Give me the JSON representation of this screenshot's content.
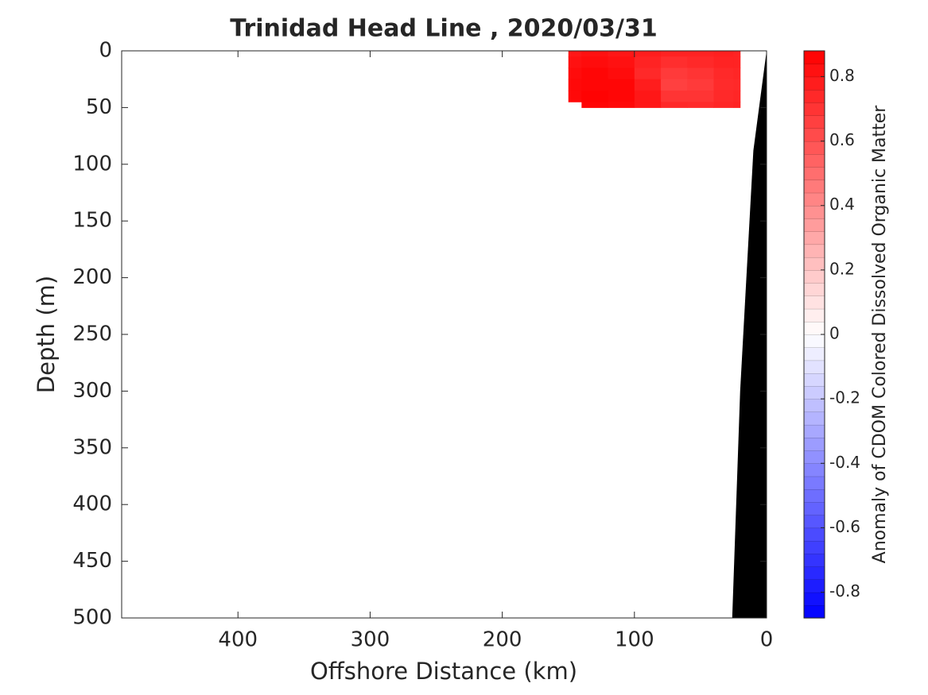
{
  "chart_data": {
    "type": "section",
    "title": "Trinidad Head Line , 2020/03/31",
    "xlabel": "Offshore Distance (km)",
    "ylabel": "Depth (m)",
    "colorbar_label": "Anomaly of CDOM Colored Dissolved Organic Matter",
    "xlim": [
      488,
      0
    ],
    "xticks": [
      400,
      300,
      200,
      100,
      0
    ],
    "ylim": [
      0,
      500
    ],
    "yticks": [
      0,
      50,
      100,
      150,
      200,
      250,
      300,
      350,
      400,
      450,
      500
    ],
    "clim": [
      -0.88,
      0.88
    ],
    "cticks": [
      -0.8,
      -0.6,
      -0.4,
      -0.2,
      0,
      0.2,
      0.4,
      0.6,
      0.8
    ],
    "x": [
      150,
      130,
      110,
      90,
      70,
      50,
      30,
      20
    ],
    "depth": [
      0,
      10,
      20,
      30,
      40,
      50
    ],
    "values": [
      [
        0.8,
        0.82,
        0.8,
        0.78,
        0.76,
        0.76,
        0.77,
        0.76
      ],
      [
        0.82,
        0.84,
        0.82,
        0.76,
        0.72,
        0.74,
        0.76,
        0.76
      ],
      [
        0.84,
        0.86,
        0.84,
        0.74,
        0.68,
        0.7,
        0.74,
        0.75
      ],
      [
        0.85,
        0.86,
        0.86,
        0.78,
        0.66,
        0.68,
        0.73,
        0.74
      ],
      [
        0.85,
        0.87,
        0.86,
        0.8,
        0.7,
        0.7,
        0.74,
        0.75
      ],
      [
        null,
        0.86,
        0.85,
        0.8,
        0.74,
        0.73,
        0.75,
        0.76
      ]
    ],
    "bathymetry": {
      "x": [
        0,
        10,
        20,
        26,
        0
      ],
      "depth": [
        0,
        88,
        300,
        500,
        500
      ],
      "color": "#000000"
    }
  }
}
